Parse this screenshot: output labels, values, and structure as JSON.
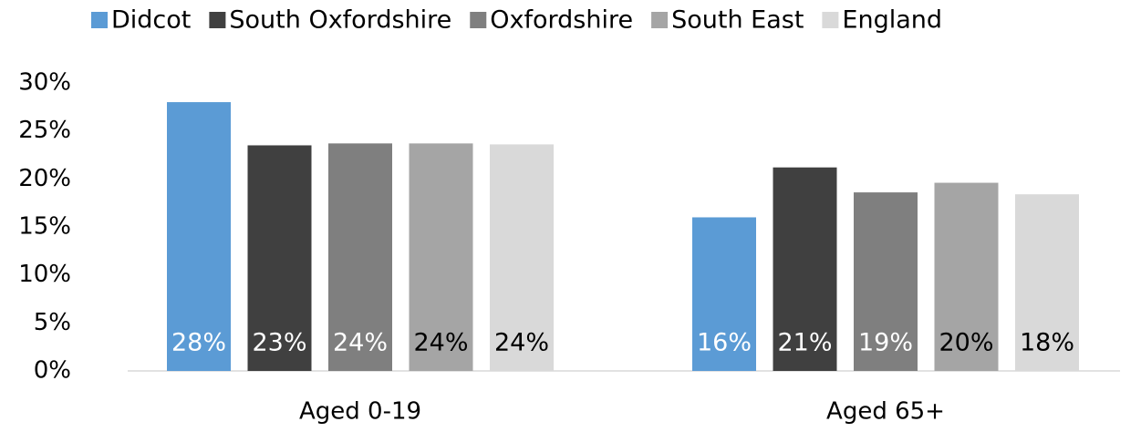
{
  "chart_data": {
    "type": "bar",
    "categories": [
      "Aged 0-19",
      "Aged 65+"
    ],
    "series": [
      {
        "name": "Didcot",
        "color": "#5b9bd5",
        "label_color": "#ffffff",
        "values": [
          28,
          16
        ],
        "value_labels": [
          "28%",
          "16%"
        ]
      },
      {
        "name": "South Oxfordshire",
        "color": "#404040",
        "label_color": "#ffffff",
        "values": [
          23.5,
          21.2
        ],
        "value_labels": [
          "23%",
          "21%"
        ]
      },
      {
        "name": "Oxfordshire",
        "color": "#7f7f7f",
        "label_color": "#ffffff",
        "values": [
          23.7,
          18.6
        ],
        "value_labels": [
          "24%",
          "19%"
        ]
      },
      {
        "name": "South East",
        "color": "#a5a5a5",
        "label_color": "#000000",
        "values": [
          23.7,
          19.6
        ],
        "value_labels": [
          "24%",
          "20%"
        ]
      },
      {
        "name": "England",
        "color": "#d9d9d9",
        "label_color": "#000000",
        "values": [
          23.6,
          18.4
        ],
        "value_labels": [
          "24%",
          "18%"
        ]
      }
    ],
    "ylim": [
      0,
      30
    ],
    "yticks": [
      {
        "value": 0,
        "label": "0%"
      },
      {
        "value": 5,
        "label": "5%"
      },
      {
        "value": 10,
        "label": "10%"
      },
      {
        "value": 15,
        "label": "15%"
      },
      {
        "value": 20,
        "label": "20%"
      },
      {
        "value": 25,
        "label": "25%"
      },
      {
        "value": 30,
        "label": "30%"
      }
    ],
    "legend": "top"
  }
}
